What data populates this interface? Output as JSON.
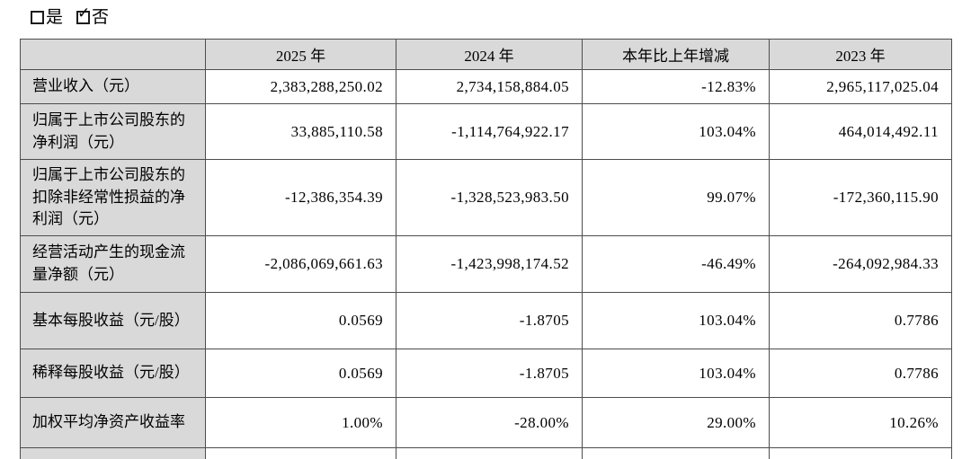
{
  "options": {
    "yes": {
      "label": "是",
      "checked": false
    },
    "no": {
      "label": "否",
      "checked": true
    }
  },
  "check_glyph": "✓",
  "colors": {
    "header_bg": "#d9d9d9",
    "label_bg": "#d9d9d9",
    "border": "#4d4d4d",
    "text": "#000000"
  },
  "table": {
    "columns": [
      "",
      "2025 年",
      "2024 年",
      "本年比上年增减",
      "2023 年"
    ],
    "rows": [
      {
        "label": "营业收入（元）",
        "values": [
          "2,383,288,250.02",
          "2,734,158,884.05",
          "-12.83%",
          "2,965,117,025.04"
        ]
      },
      {
        "label": "归属于上市公司股东的净利润（元）",
        "values": [
          "33,885,110.58",
          "-1,114,764,922.17",
          "103.04%",
          "464,014,492.11"
        ]
      },
      {
        "label": "归属于上市公司股东的扣除非经常性损益的净利润（元）",
        "values": [
          "-12,386,354.39",
          "-1,328,523,983.50",
          "99.07%",
          "-172,360,115.90"
        ]
      },
      {
        "label": "经营活动产生的现金流量净额（元）",
        "values": [
          "-2,086,069,661.63",
          "-1,423,998,174.52",
          "-46.49%",
          "-264,092,984.33"
        ]
      },
      {
        "label": "基本每股收益（元/股）",
        "values": [
          "0.0569",
          "-1.8705",
          "103.04%",
          "0.7786"
        ]
      },
      {
        "label": "稀释每股收益（元/股）",
        "values": [
          "0.0569",
          "-1.8705",
          "103.04%",
          "0.7786"
        ]
      },
      {
        "label": "加权平均净资产收益率",
        "values": [
          "1.00%",
          "-28.00%",
          "29.00%",
          "10.26%"
        ]
      }
    ]
  }
}
